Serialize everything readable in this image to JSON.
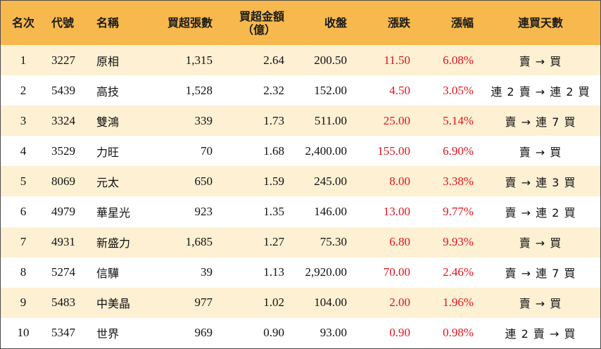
{
  "headers": {
    "rank": "名次",
    "code": "代號",
    "name": "名稱",
    "net_buy_lots": "買超張數",
    "net_buy_amount_line1": "買超金額",
    "net_buy_amount_line2": "（億）",
    "close": "收盤",
    "change": "漲跌",
    "change_pct": "漲幅",
    "consecutive_days": "連買天數"
  },
  "rows": [
    {
      "rank": "1",
      "code": "3227",
      "name": "原相",
      "lots": "1,315",
      "amount": "2.64",
      "close": "200.50",
      "change": "11.50",
      "pct": "6.08%",
      "days": "賣 → 買"
    },
    {
      "rank": "2",
      "code": "5439",
      "name": "高技",
      "lots": "1,528",
      "amount": "2.32",
      "close": "152.00",
      "change": "4.50",
      "pct": "3.05%",
      "days": "連 2 賣 → 連 2 買"
    },
    {
      "rank": "3",
      "code": "3324",
      "name": "雙鴻",
      "lots": "339",
      "amount": "1.73",
      "close": "511.00",
      "change": "25.00",
      "pct": "5.14%",
      "days": "賣 → 連 7 買"
    },
    {
      "rank": "4",
      "code": "3529",
      "name": "力旺",
      "lots": "70",
      "amount": "1.68",
      "close": "2,400.00",
      "change": "155.00",
      "pct": "6.90%",
      "days": "賣 → 買"
    },
    {
      "rank": "5",
      "code": "8069",
      "name": "元太",
      "lots": "650",
      "amount": "1.59",
      "close": "245.00",
      "change": "8.00",
      "pct": "3.38%",
      "days": "賣 → 連 3 買"
    },
    {
      "rank": "6",
      "code": "4979",
      "name": "華星光",
      "lots": "923",
      "amount": "1.35",
      "close": "146.00",
      "change": "13.00",
      "pct": "9.77%",
      "days": "賣 → 連 2 買"
    },
    {
      "rank": "7",
      "code": "4931",
      "name": "新盛力",
      "lots": "1,685",
      "amount": "1.27",
      "close": "75.30",
      "change": "6.80",
      "pct": "9.93%",
      "days": "賣 → 買"
    },
    {
      "rank": "8",
      "code": "5274",
      "name": "信驊",
      "lots": "39",
      "amount": "1.13",
      "close": "2,920.00",
      "change": "70.00",
      "pct": "2.46%",
      "days": "賣 → 連 7 買"
    },
    {
      "rank": "9",
      "code": "5483",
      "name": "中美晶",
      "lots": "977",
      "amount": "1.02",
      "close": "104.00",
      "change": "2.00",
      "pct": "1.96%",
      "days": "賣 → 買"
    },
    {
      "rank": "10",
      "code": "5347",
      "name": "世界",
      "lots": "969",
      "amount": "0.90",
      "close": "93.00",
      "change": "0.90",
      "pct": "0.98%",
      "days": "連 2 賣 → 買"
    }
  ],
  "colors": {
    "header_bg": "#f7b94d",
    "odd_row_bg": "#fdf0d3",
    "even_row_bg": "#ffffff",
    "gain_text": "#e0141f"
  }
}
